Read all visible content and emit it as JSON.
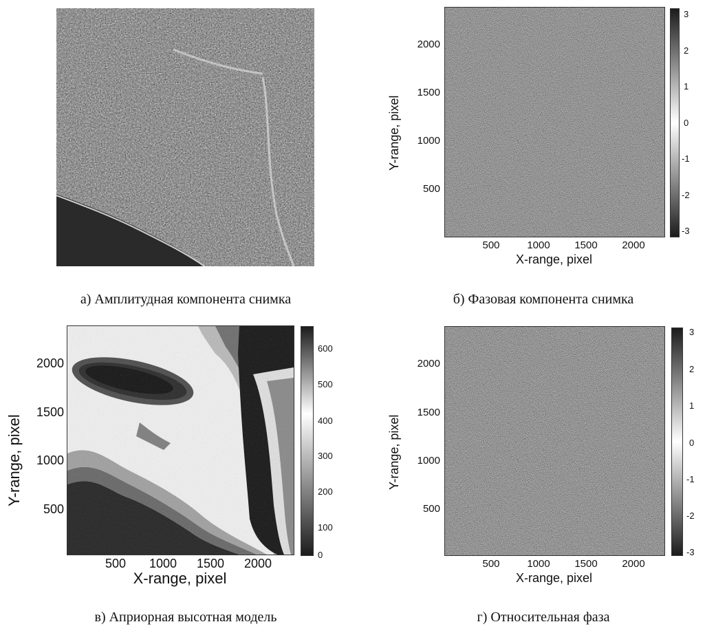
{
  "captions": {
    "a": "а) Амплитудная компонента снимка",
    "b": "б) Фазовая компонента снимка",
    "c": "в) Априорная высотная модель",
    "d": "г) Относительная фаза"
  },
  "chart_data": [
    {
      "type": "heatmap",
      "panel": "б",
      "xlabel": "X-range, pixel",
      "ylabel": "Y-range, pixel",
      "x_ticks": [
        "500",
        "1000",
        "1500",
        "2000"
      ],
      "y_ticks": [
        "2000",
        "1500",
        "1000",
        "500"
      ],
      "xlim": [
        0,
        2380
      ],
      "ylim": [
        0,
        2380
      ],
      "colorbar_ticks": [
        "3",
        "2",
        "1",
        "0",
        "-1",
        "-2",
        "-3"
      ],
      "colorbar_range": [
        -3.14,
        3.14
      ],
      "colormap": "grayscale (black-white-black)",
      "pattern": "uniform random noise"
    },
    {
      "type": "heatmap",
      "panel": "в",
      "xlabel": "X-range, pixel",
      "ylabel": "Y-range, pixel",
      "x_ticks": [
        "500",
        "1000",
        "1500",
        "2000"
      ],
      "y_ticks": [
        "2000",
        "1500",
        "1000",
        "500"
      ],
      "xlim": [
        0,
        2380
      ],
      "ylim": [
        0,
        2380
      ],
      "colorbar_ticks": [
        "600",
        "500",
        "400",
        "300",
        "200",
        "100",
        "0"
      ],
      "colorbar_range": [
        0,
        660
      ],
      "colormap": "grayscale (black-white-black)",
      "pattern": "elevation model"
    },
    {
      "type": "heatmap",
      "panel": "г",
      "xlabel": "X-range, pixel",
      "ylabel": "Y-range, pixel",
      "x_ticks": [
        "500",
        "1000",
        "1500",
        "2000"
      ],
      "y_ticks": [
        "2000",
        "1500",
        "1000",
        "500"
      ],
      "xlim": [
        0,
        2380
      ],
      "ylim": [
        0,
        2380
      ],
      "colorbar_ticks": [
        "3",
        "2",
        "1",
        "0",
        "-1",
        "-2",
        "-3"
      ],
      "colorbar_range": [
        -3.14,
        3.14
      ],
      "colormap": "grayscale (black-white-black)",
      "pattern": "uniform random noise"
    }
  ]
}
